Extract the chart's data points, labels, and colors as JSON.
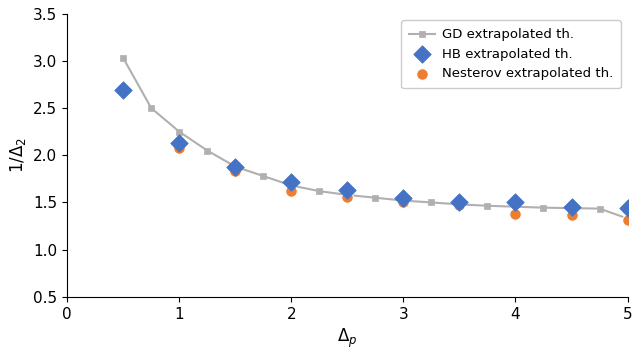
{
  "title": "",
  "xlabel": "$\\Delta_p$",
  "ylabel": "$1/\\Delta_2$",
  "xlim": [
    0,
    5
  ],
  "ylim": [
    0.5,
    3.5
  ],
  "xticks": [
    0,
    1,
    2,
    3,
    4,
    5
  ],
  "yticks": [
    0.5,
    1.0,
    1.5,
    2.0,
    2.5,
    3.0,
    3.5
  ],
  "gd_x": [
    0.5,
    0.75,
    1.0,
    1.25,
    1.5,
    1.75,
    2.0,
    2.25,
    2.5,
    2.75,
    3.0,
    3.25,
    3.5,
    3.75,
    4.0,
    4.25,
    4.5,
    4.75,
    5.0
  ],
  "gd_y": [
    3.03,
    2.5,
    2.25,
    2.05,
    1.88,
    1.78,
    1.68,
    1.62,
    1.58,
    1.55,
    1.52,
    1.5,
    1.48,
    1.465,
    1.455,
    1.445,
    1.44,
    1.435,
    1.33
  ],
  "hb_x": [
    0.5,
    1.0,
    1.5,
    2.0,
    2.5,
    3.0,
    3.5,
    4.0,
    4.5,
    5.0
  ],
  "hb_y": [
    2.69,
    2.13,
    1.88,
    1.72,
    1.63,
    1.55,
    1.505,
    1.5,
    1.455,
    1.44
  ],
  "nesterov_x": [
    0.5,
    1.0,
    1.5,
    2.0,
    2.5,
    3.0,
    3.5,
    4.0,
    4.5,
    5.0
  ],
  "nesterov_y": [
    2.7,
    2.08,
    1.83,
    1.62,
    1.56,
    1.5,
    1.47,
    1.38,
    1.37,
    1.31
  ],
  "gd_color": "#b0b0b0",
  "hb_color": "#4472c4",
  "nesterov_color": "#ed7d31",
  "gd_label": "GD extrapolated th.",
  "hb_label": "HB extrapolated th.",
  "nesterov_label": "Nesterov extrapolated th.",
  "figsize": [
    6.4,
    3.58
  ],
  "dpi": 100
}
